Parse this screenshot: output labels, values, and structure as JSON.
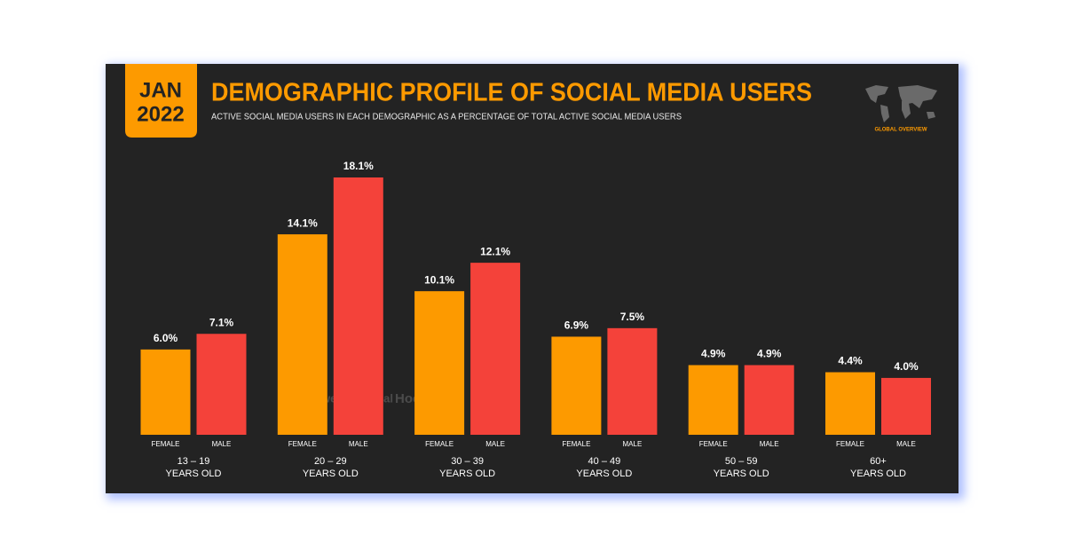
{
  "badge": {
    "month": "JAN",
    "year": "2022"
  },
  "brand_tag": "GLOBAL OVERVIEW",
  "watermark": [
    "we are social",
    "Hootsuite"
  ],
  "chart_data": {
    "type": "bar",
    "title": "DEMOGRAPHIC PROFILE OF SOCIAL MEDIA USERS",
    "subtitle": "ACTIVE SOCIAL MEDIA USERS IN EACH DEMOGRAPHIC AS A PERCENTAGE OF TOTAL ACTIVE SOCIAL MEDIA USERS",
    "categories": [
      "13 – 19\nYEARS OLD",
      "20 – 29\nYEARS OLD",
      "30 – 39\nYEARS OLD",
      "40 – 49\nYEARS OLD",
      "50 – 59\nYEARS OLD",
      "60+\nYEARS OLD"
    ],
    "series": [
      {
        "name": "FEMALE",
        "color": "#fd9a00",
        "values": [
          6.0,
          14.1,
          10.1,
          6.9,
          4.9,
          4.4
        ],
        "value_labels": [
          "6.0%",
          "14.1%",
          "10.1%",
          "6.9%",
          "4.9%",
          "4.4%"
        ]
      },
      {
        "name": "MALE",
        "color": "#f4423a",
        "values": [
          7.1,
          18.1,
          12.1,
          7.5,
          4.9,
          4.0
        ],
        "value_labels": [
          "7.1%",
          "18.1%",
          "12.1%",
          "7.5%",
          "4.9%",
          "4.0%"
        ]
      }
    ]
  }
}
